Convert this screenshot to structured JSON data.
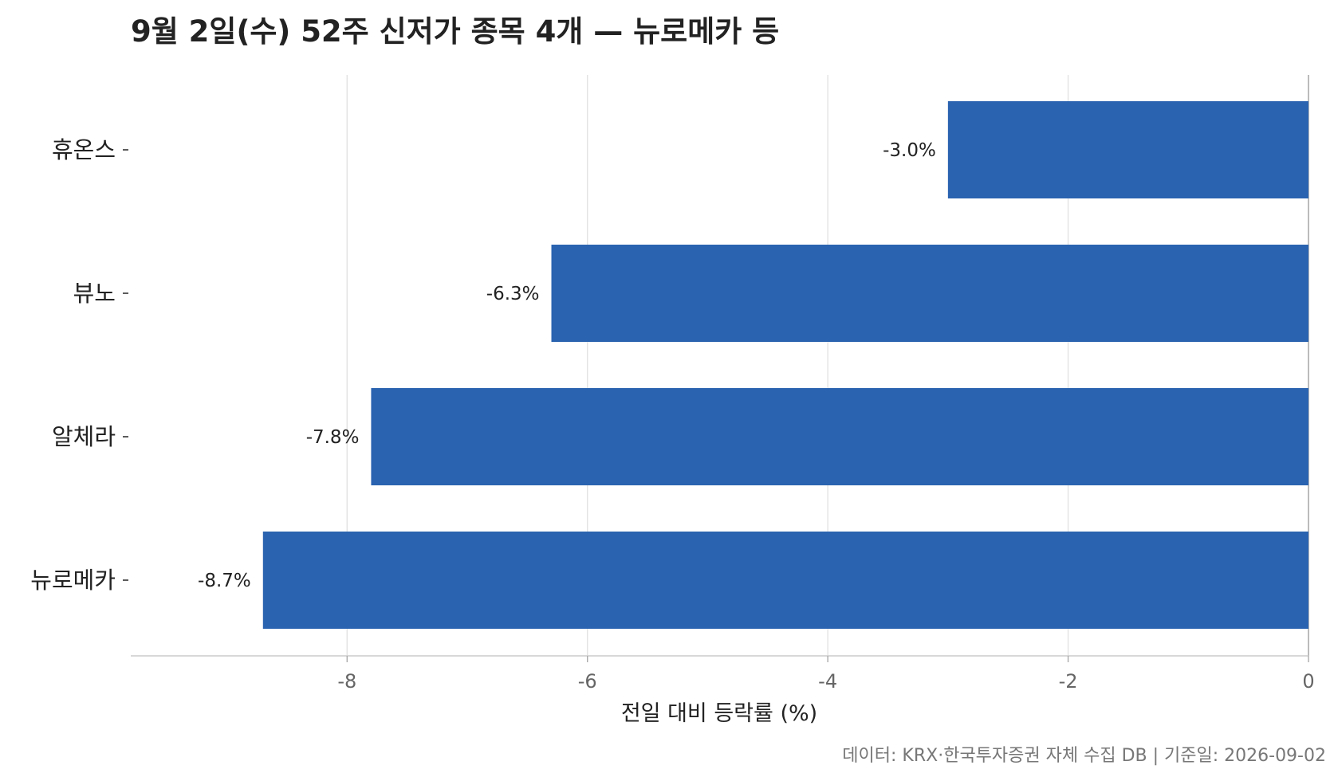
{
  "chart_data": {
    "type": "bar",
    "orientation": "horizontal",
    "title": "9월 2일(수) 52주 신저가 종목 4개 — 뉴로메카 등",
    "categories": [
      "휴온스",
      "뷰노",
      "알체라",
      "뉴로메카"
    ],
    "values": [
      -3.0,
      -6.3,
      -7.8,
      -8.7
    ],
    "value_labels": [
      "-3.0%",
      "-6.3%",
      "-7.8%",
      "-8.7%"
    ],
    "xlabel": "전일 대비 등락률 (%)",
    "ylabel": "",
    "xlim": [
      -9.8,
      0
    ],
    "xticks": [
      -8,
      -6,
      -4,
      -2,
      0
    ],
    "xtick_labels": [
      "-8",
      "-6",
      "-4",
      "-2",
      "0"
    ],
    "grid": "vertical",
    "bar_color": "#2a63b0",
    "source_note": "데이터: KRX·한국투자증권 자체 수집 DB  |  기준일: 2026-09-02"
  }
}
